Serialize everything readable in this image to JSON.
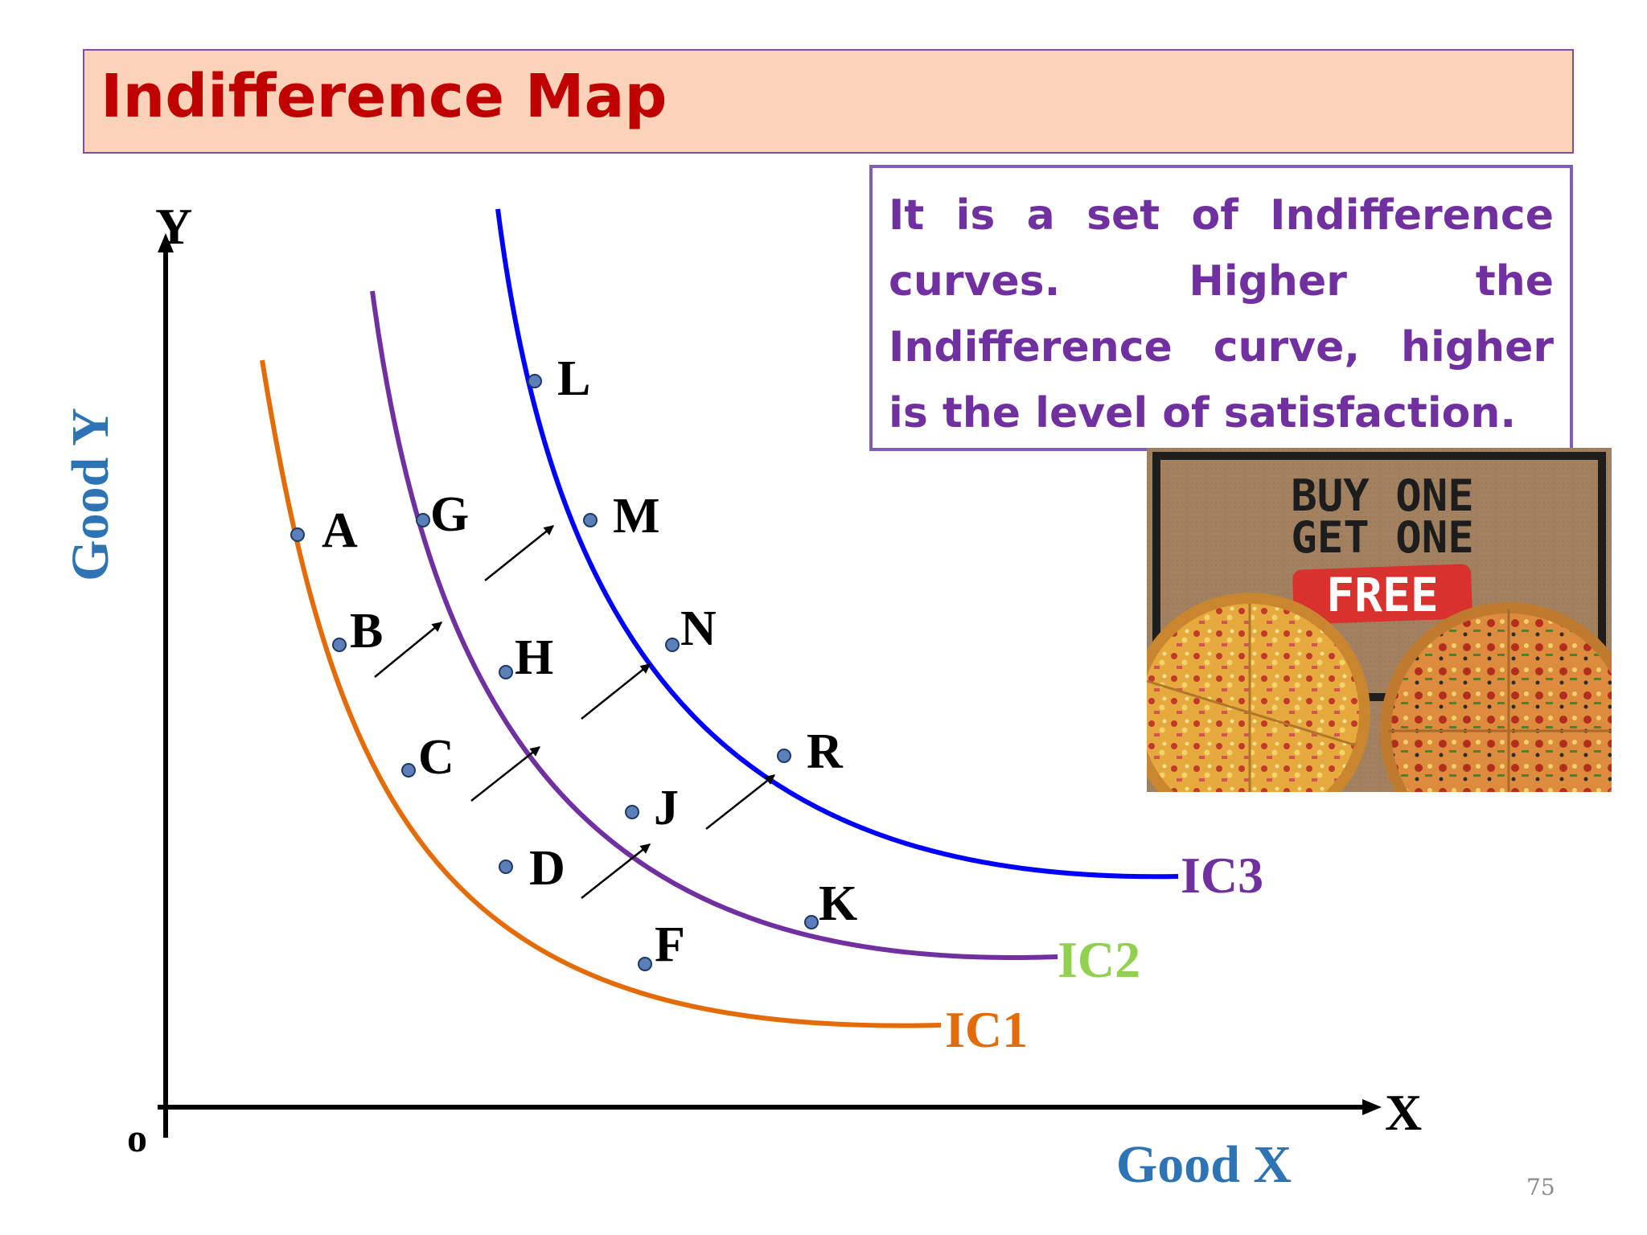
{
  "slide": {
    "title": "Indifference Map",
    "definition": "It is a set of Indifference curves. Higher the Indifference curve, higher is the level of satisfaction.",
    "page_number": "75"
  },
  "axes": {
    "y_axis_letter": "Y",
    "x_axis_letter": "X",
    "origin_label": "o",
    "y_axis_title": "Good Y",
    "x_axis_title": "Good X"
  },
  "curves": [
    {
      "label": "IC1",
      "line_color": "#e36c09",
      "label_color": "#e36c09",
      "points": [
        "A",
        "B",
        "C",
        "D",
        "F"
      ]
    },
    {
      "label": "IC2",
      "line_color": "#7030a0",
      "label_color": "#92d050",
      "points": [
        "G",
        "H",
        "J",
        "K"
      ]
    },
    {
      "label": "IC3",
      "line_color": "#0000ff",
      "label_color": "#7030a0",
      "points": [
        "L",
        "M",
        "N",
        "R"
      ]
    }
  ],
  "colors": {
    "title_text": "#c00000",
    "title_background": "#fbd3b8",
    "definition_text": "#7030a0",
    "axis_title": "#2e74b5",
    "point_fill": "#5b7fb9"
  },
  "promo": {
    "line1": "BUY ONE",
    "line2": "GET ONE",
    "line3": "FREE"
  }
}
